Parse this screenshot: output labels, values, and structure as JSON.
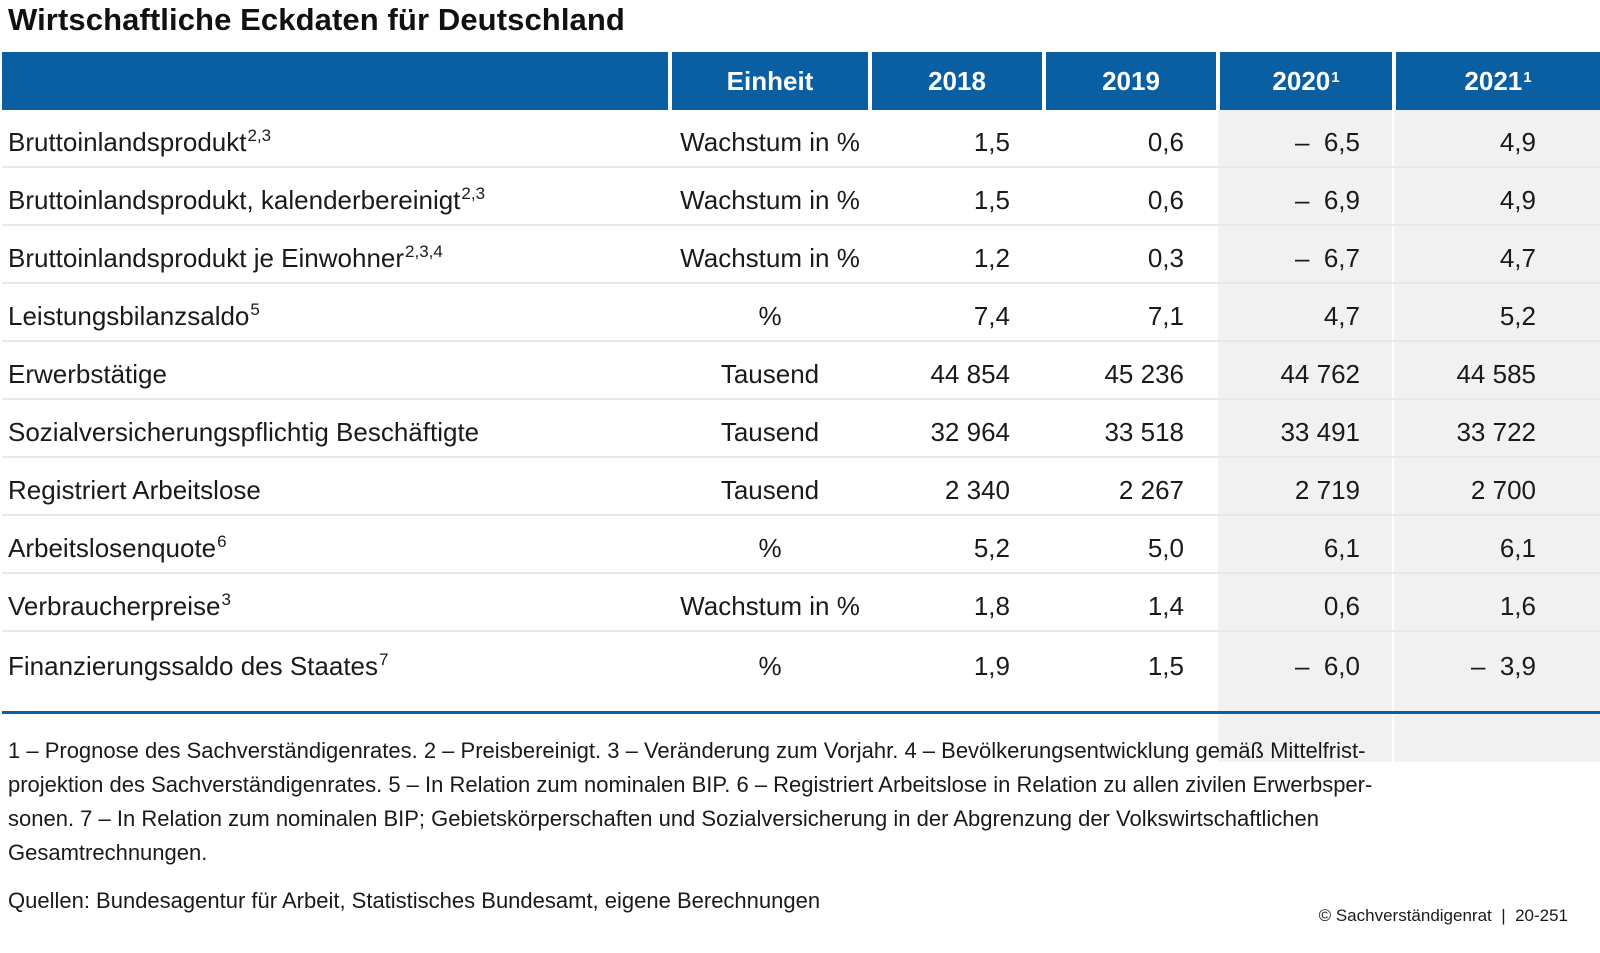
{
  "title": "Wirtschaftliche Eckdaten für Deutschland",
  "header": {
    "label": "",
    "unit": "Einheit",
    "y2018": "2018",
    "y2019": "2019",
    "y2020": "2020",
    "y2020_sup": "1",
    "y2021": "2021",
    "y2021_sup": "1"
  },
  "rows": [
    {
      "label": "Bruttoinlandsprodukt",
      "sup": "2,3",
      "unit": "Wachstum in %",
      "v2018": "1,5",
      "v2019": "0,6",
      "v2020": "–  6,5",
      "v2021": "4,9"
    },
    {
      "label": "Bruttoinlandsprodukt, kalenderbereinigt",
      "sup": "2,3",
      "unit": "Wachstum in %",
      "v2018": "1,5",
      "v2019": "0,6",
      "v2020": "–  6,9",
      "v2021": "4,9"
    },
    {
      "label": "Bruttoinlandsprodukt je Einwohner",
      "sup": "2,3,4",
      "unit": "Wachstum in %",
      "v2018": "1,2",
      "v2019": "0,3",
      "v2020": "–  6,7",
      "v2021": "4,7"
    },
    {
      "label": "Leistungsbilanzsaldo",
      "sup": "5",
      "unit": "%",
      "v2018": "7,4",
      "v2019": "7,1",
      "v2020": "4,7",
      "v2021": "5,2"
    },
    {
      "label": "Erwerbstätige",
      "sup": "",
      "unit": "Tausend",
      "v2018": "44 854",
      "v2019": "45 236",
      "v2020": "44 762",
      "v2021": "44 585"
    },
    {
      "label": "Sozialversicherungspflichtig Beschäftigte",
      "sup": "",
      "unit": "Tausend",
      "v2018": "32 964",
      "v2019": "33 518",
      "v2020": "33 491",
      "v2021": "33 722"
    },
    {
      "label": "Registriert Arbeitslose",
      "sup": "",
      "unit": "Tausend",
      "v2018": "2 340",
      "v2019": "2 267",
      "v2020": "2 719",
      "v2021": "2 700"
    },
    {
      "label": "Arbeitslosenquote",
      "sup": "6",
      "unit": "%",
      "v2018": "5,2",
      "v2019": "5,0",
      "v2020": "6,1",
      "v2021": "6,1"
    },
    {
      "label": "Verbraucherpreise",
      "sup": "3",
      "unit": "Wachstum in %",
      "v2018": "1,8",
      "v2019": "1,4",
      "v2020": "0,6",
      "v2021": "1,6"
    },
    {
      "label": "Finanzierungssaldo des Staates",
      "sup": "7",
      "unit": "%",
      "v2018": "1,9",
      "v2019": "1,5",
      "v2020": "–  6,0",
      "v2021": "–  3,9"
    }
  ],
  "footnotes": {
    "text_line1": "1 – Prognose des Sachverständigenrates.  2 – Preisbereinigt.  3 – Veränderung zum Vorjahr.  4 – Bevölkerungsentwicklung gemäß Mittelfrist-",
    "text_line2": "projektion des Sachverständigenrates.  5 – In Relation zum nominalen BIP.  6 – Registriert Arbeitslose in Relation zu allen zivilen Erwerbsper-",
    "text_line3": "sonen.  7 – In Relation zum nominalen BIP; Gebietskörperschaften und Sozialversicherung in der Abgrenzung der Volkswirtschaftlichen",
    "text_line4": "Gesamtrechnungen."
  },
  "sources": "Quellen: Bundesagentur für Arbeit, Statistisches Bundesamt, eigene Berechnungen",
  "copyright": "© Sachverständigenrat  |  20-251",
  "colors": {
    "header_bg": "#0a5fa3",
    "forecast_shade": "#f1f1f1",
    "rule": "#0a5fa3"
  }
}
